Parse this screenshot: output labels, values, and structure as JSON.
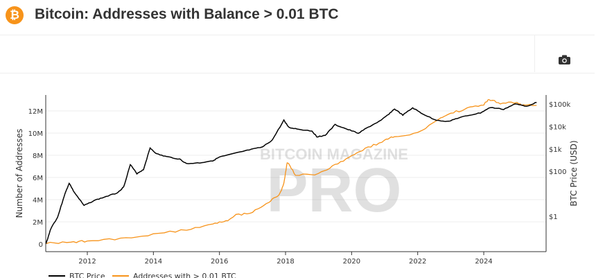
{
  "header": {
    "title": "Bitcoin: Addresses with Balance > 0.01 BTC",
    "logo_text": "₿"
  },
  "toolbar": {
    "camera_icon": "camera-icon"
  },
  "watermark": {
    "line1": "BITCOIN MAGAZINE",
    "line2": "PRO"
  },
  "chart_data": {
    "type": "line",
    "title": "",
    "xlabel": "",
    "ylabel_left": "Number of Addresses",
    "ylabel_right": "BTC Price (USD)",
    "x_ticks": [
      "2012",
      "2014",
      "2016",
      "2018",
      "2020",
      "2022",
      "2024"
    ],
    "y_left_ticks": [
      "0",
      "2M",
      "4M",
      "6M",
      "8M",
      "10M",
      "12M"
    ],
    "y_right_ticks": [
      "$1",
      "$100",
      "$1k",
      "$10k",
      "$100k"
    ],
    "y_right_scale": "log",
    "xlim": [
      2010.74,
      2025.8
    ],
    "ylim_left": [
      0,
      13000000
    ],
    "grid": true,
    "legend_position": "bottom",
    "colors": {
      "btc_price": "#000000",
      "addresses": "#f7931a"
    },
    "series": [
      {
        "name": "BTC Price",
        "axis": "right",
        "x": [
          2010.75,
          2010.9,
          2011.1,
          2011.3,
          2011.45,
          2011.6,
          2011.9,
          2012.2,
          2012.5,
          2012.9,
          2013.1,
          2013.3,
          2013.5,
          2013.7,
          2013.9,
          2014.1,
          2014.4,
          2014.8,
          2015.0,
          2015.4,
          2015.8,
          2016.0,
          2016.5,
          2016.9,
          2017.3,
          2017.6,
          2017.95,
          2018.1,
          2018.4,
          2018.8,
          2018.95,
          2019.2,
          2019.5,
          2019.9,
          2020.2,
          2020.5,
          2020.9,
          2021.1,
          2021.3,
          2021.55,
          2021.85,
          2022.1,
          2022.5,
          2022.9,
          2023.2,
          2023.5,
          2023.9,
          2024.2,
          2024.6,
          2024.95,
          2025.3,
          2025.6
        ],
        "y": [
          0.06,
          0.3,
          0.9,
          8,
          30,
          12,
          3,
          5,
          7,
          11,
          20,
          200,
          80,
          120,
          1100,
          600,
          450,
          350,
          220,
          240,
          300,
          430,
          650,
          900,
          1200,
          2500,
          19000,
          9000,
          7500,
          6300,
          3500,
          4000,
          12000,
          7200,
          5000,
          9200,
          19000,
          33000,
          60000,
          32000,
          67000,
          40000,
          20000,
          16500,
          23000,
          30000,
          40000,
          70000,
          58000,
          100000,
          80000,
          118000
        ]
      },
      {
        "name": "Addresses with > 0.01 BTC",
        "axis": "left",
        "x": [
          2010.75,
          2011.5,
          2012.0,
          2013.0,
          2014.0,
          2015.0,
          2015.8,
          2016.2,
          2016.5,
          2017.0,
          2017.5,
          2017.8,
          2017.95,
          2018.05,
          2018.3,
          2019.0,
          2019.5,
          2020.0,
          2020.5,
          2021.0,
          2021.3,
          2022.0,
          2022.7,
          2023.0,
          2023.5,
          2024.0,
          2024.15,
          2024.5,
          2025.0,
          2025.2,
          2025.6
        ],
        "y": [
          50000,
          200000,
          250000,
          450000,
          850000,
          1300000,
          1800000,
          2100000,
          2600000,
          2900000,
          3800000,
          4400000,
          5400000,
          7400000,
          6200000,
          6300000,
          7100000,
          8000000,
          8700000,
          9300000,
          9700000,
          10000000,
          11300000,
          11800000,
          12200000,
          12600000,
          13000000,
          12700000,
          12800000,
          12500000,
          12500000
        ]
      }
    ]
  }
}
